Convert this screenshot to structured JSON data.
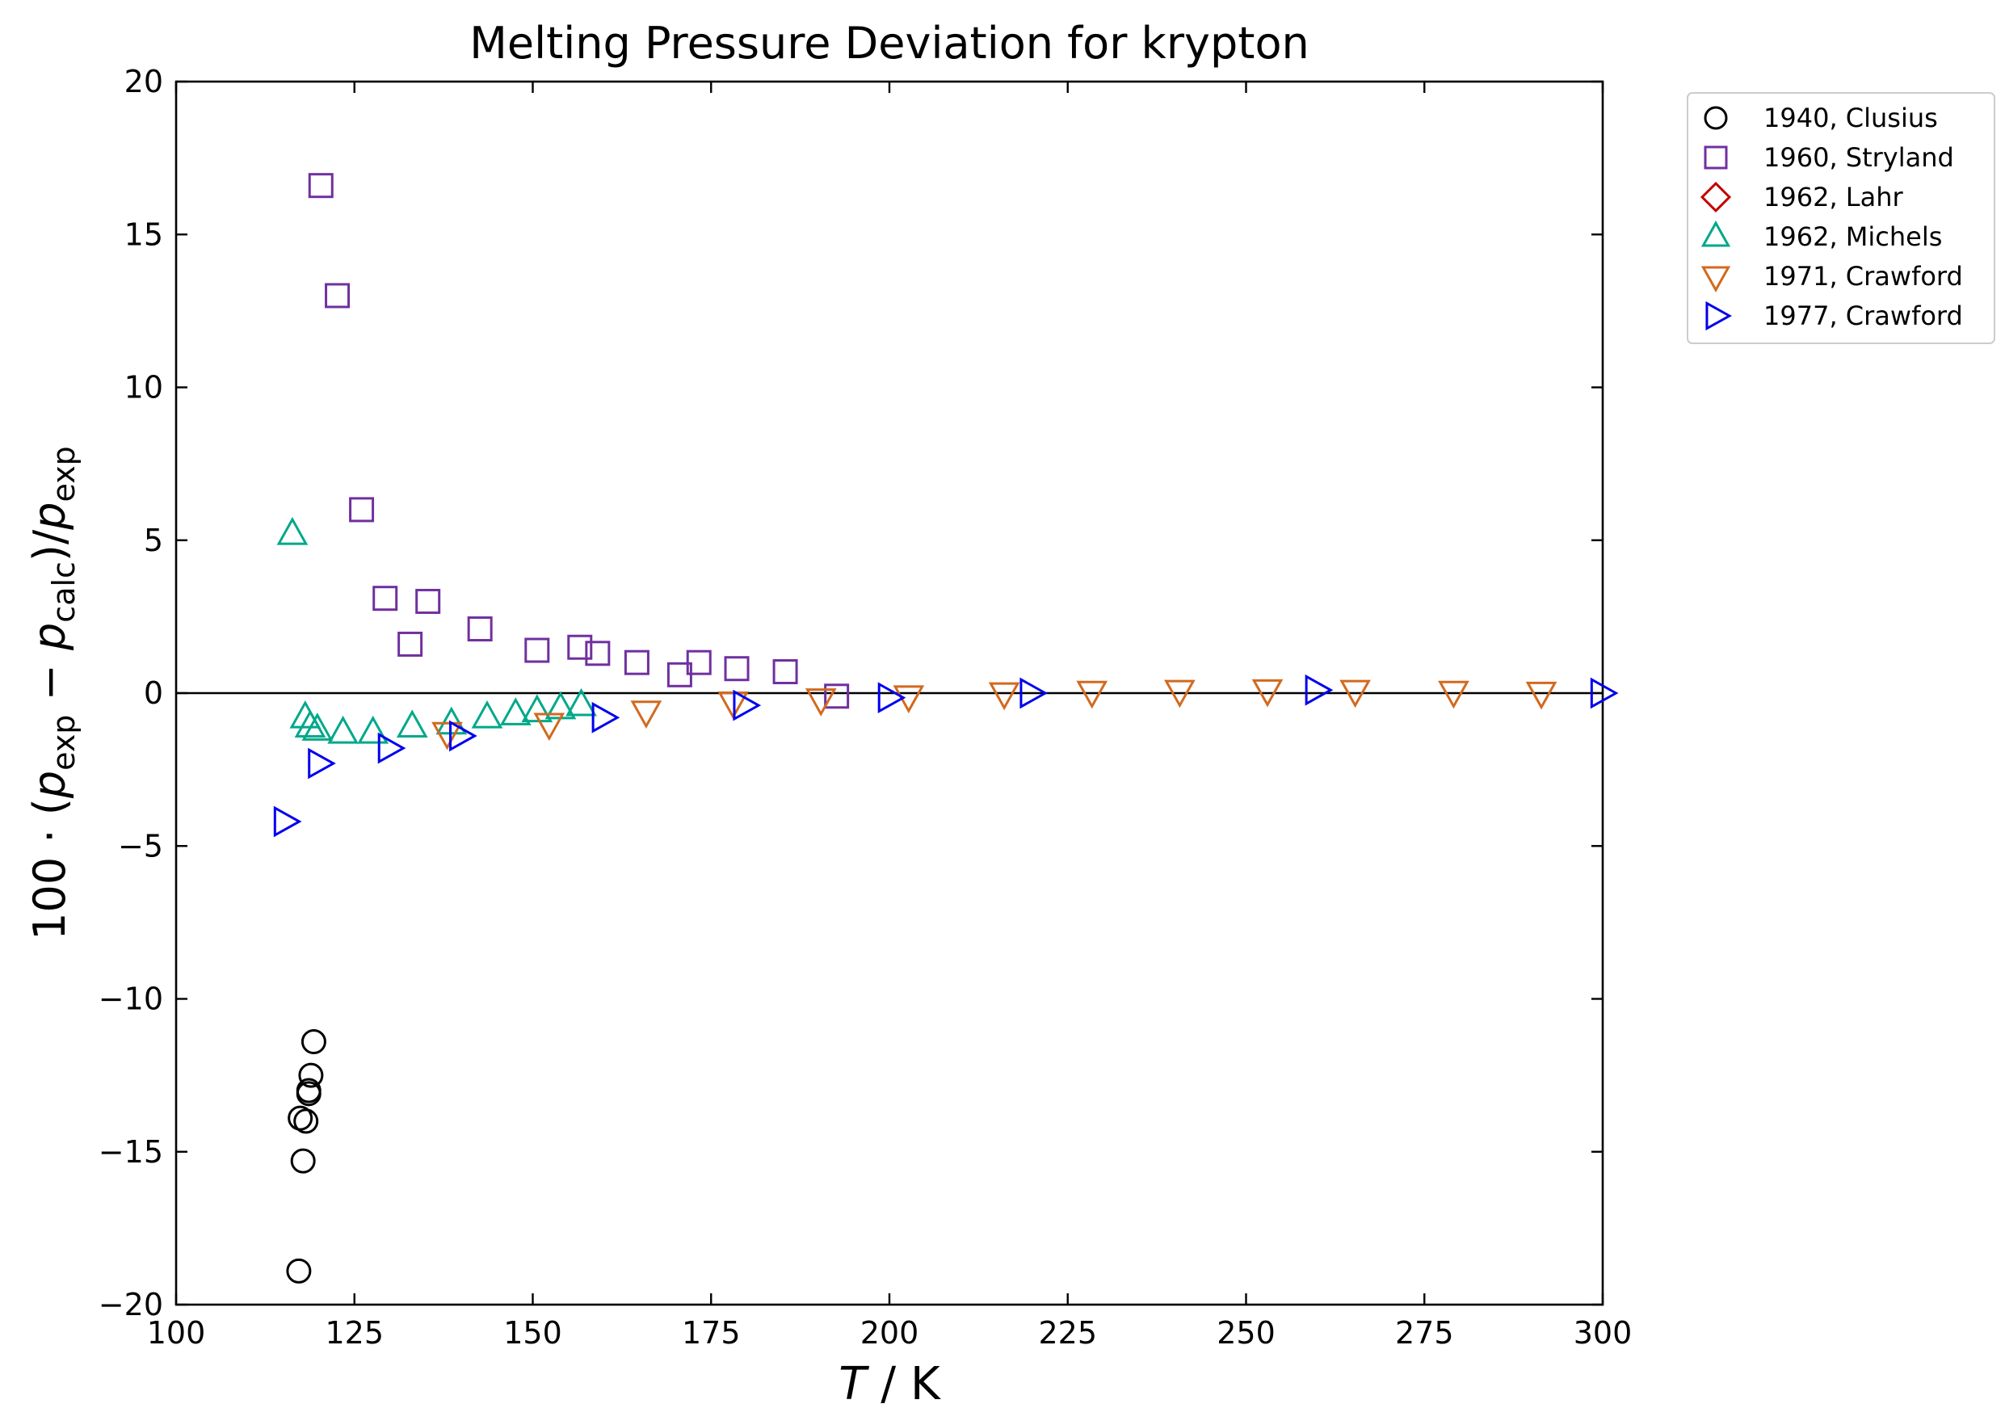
{
  "chart_data": {
    "type": "scatter",
    "title": "Melting Pressure Deviation for krypton",
    "xlabel": {
      "italic": "T",
      "rest": " / K"
    },
    "ylabel": {
      "prefix": "100 · (",
      "p1": "p",
      "s1": "exp",
      "minus": " − ",
      "p2": "p",
      "s2": "calc",
      "mid": ")/",
      "p3": "p",
      "s3": "exp"
    },
    "xlim": [
      100,
      300
    ],
    "ylim": [
      -20,
      20
    ],
    "xticks": [
      100,
      125,
      150,
      175,
      200,
      225,
      250,
      275,
      300
    ],
    "yticks": [
      -20,
      -15,
      -10,
      -5,
      0,
      5,
      10,
      15,
      20
    ],
    "ytick_labels": [
      "−20",
      "−15",
      "−10",
      "−5",
      "0",
      "5",
      "10",
      "15",
      "20"
    ],
    "zero_line": true,
    "grid": false,
    "legend_placement": "outside-top-right",
    "series": [
      {
        "name": "1940, Clusius",
        "marker": "circle",
        "color": "#000000",
        "x": [
          117.2,
          117.8,
          117.4,
          118.2,
          118.6,
          118.6,
          118.9,
          119.3
        ],
        "y": [
          -18.9,
          -15.3,
          -13.9,
          -14.0,
          -13.1,
          -13.0,
          -12.5,
          -11.4
        ]
      },
      {
        "name": "1960, Stryland",
        "marker": "square",
        "color": "#7030a0",
        "x": [
          120.3,
          122.6,
          126.0,
          129.3,
          132.8,
          135.3,
          142.6,
          150.6,
          156.6,
          159.1,
          164.6,
          170.6,
          173.3,
          178.6,
          185.4,
          192.6
        ],
        "y": [
          16.6,
          13.0,
          6.0,
          3.1,
          1.6,
          3.0,
          2.1,
          1.4,
          1.5,
          1.3,
          1.0,
          0.6,
          1.0,
          0.8,
          0.7,
          -0.1
        ]
      },
      {
        "name": "1962, Lahr",
        "marker": "diamond",
        "color": "#c00000",
        "x": [],
        "y": []
      },
      {
        "name": "1962, Michels",
        "marker": "triangle-up",
        "color": "#00a88a",
        "x": [
          116.3,
          118.1,
          118.8,
          119.8,
          123.4,
          127.6,
          133.1,
          138.6,
          143.6,
          147.6,
          150.6,
          153.9,
          156.8
        ],
        "y": [
          5.2,
          -0.8,
          -1.1,
          -1.2,
          -1.3,
          -1.3,
          -1.1,
          -1.0,
          -0.8,
          -0.7,
          -0.6,
          -0.5,
          -0.4
        ]
      },
      {
        "name": "1971, Crawford",
        "marker": "triangle-down",
        "color": "#d2691e",
        "x": [
          138.0,
          152.3,
          165.9,
          178.1,
          190.4,
          202.7,
          216.1,
          228.4,
          240.7,
          253.0,
          265.3,
          279.1,
          291.4
        ],
        "y": [
          -1.3,
          -1.0,
          -0.6,
          -0.3,
          -0.2,
          -0.1,
          0.0,
          0.05,
          0.08,
          0.1,
          0.08,
          0.05,
          0.02
        ]
      },
      {
        "name": "1977, Crawford",
        "marker": "triangle-right",
        "color": "#0000ee",
        "x": [
          115.2,
          120.0,
          129.8,
          139.8,
          159.8,
          179.6,
          199.9,
          219.8,
          259.8,
          299.8
        ],
        "y": [
          -4.2,
          -2.3,
          -1.8,
          -1.4,
          -0.8,
          -0.4,
          -0.15,
          0.0,
          0.1,
          0.0
        ]
      }
    ]
  }
}
